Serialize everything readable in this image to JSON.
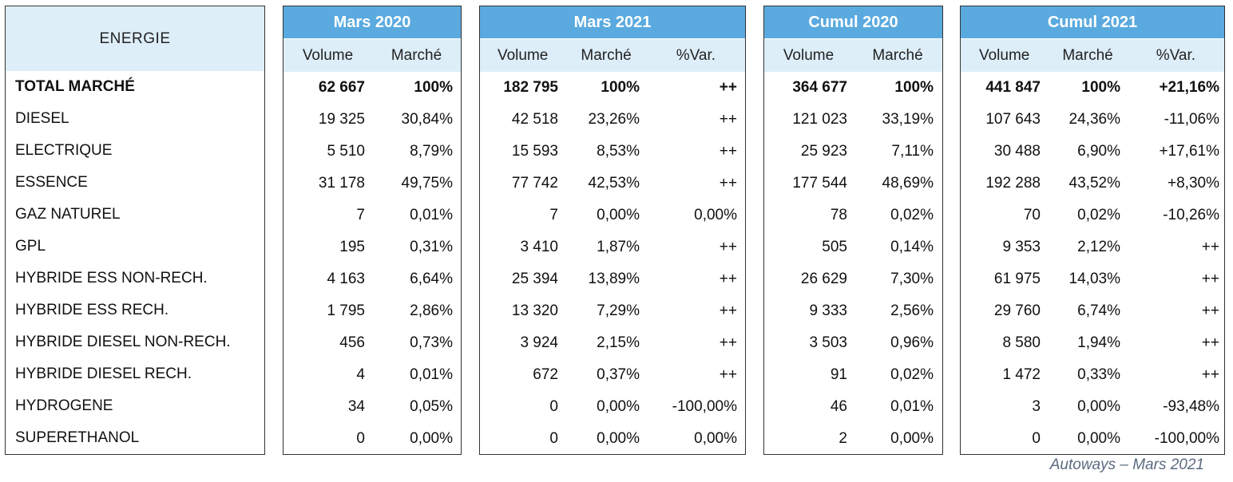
{
  "energy": {
    "header": "ENERGIE",
    "rows": [
      "TOTAL MARCHÉ",
      "DIESEL",
      "ELECTRIQUE",
      "ESSENCE",
      "GAZ NATUREL",
      "GPL",
      "HYBRIDE ESS NON-RECH.",
      "HYBRIDE ESS RECH.",
      "HYBRIDE DIESEL NON-RECH.",
      "HYBRIDE DIESEL RECH.",
      "HYDROGENE",
      "SUPERETHANOL"
    ]
  },
  "mars2020": {
    "title": "Mars 2020",
    "col_volume": "Volume",
    "col_marche": "Marché",
    "rows": [
      [
        "62 667",
        "100%"
      ],
      [
        "19 325",
        "30,84%"
      ],
      [
        "5 510",
        "8,79%"
      ],
      [
        "31 178",
        "49,75%"
      ],
      [
        "7",
        "0,01%"
      ],
      [
        "195",
        "0,31%"
      ],
      [
        "4 163",
        "6,64%"
      ],
      [
        "1 795",
        "2,86%"
      ],
      [
        "456",
        "0,73%"
      ],
      [
        "4",
        "0,01%"
      ],
      [
        "34",
        "0,05%"
      ],
      [
        "0",
        "0,00%"
      ]
    ]
  },
  "mars2021": {
    "title": "Mars 2021",
    "col_volume": "Volume",
    "col_marche": "Marché",
    "col_var": "%Var.",
    "rows": [
      [
        "182 795",
        "100%",
        "++"
      ],
      [
        "42 518",
        "23,26%",
        "++"
      ],
      [
        "15 593",
        "8,53%",
        "++"
      ],
      [
        "77 742",
        "42,53%",
        "++"
      ],
      [
        "7",
        "0,00%",
        "0,00%"
      ],
      [
        "3 410",
        "1,87%",
        "++"
      ],
      [
        "25 394",
        "13,89%",
        "++"
      ],
      [
        "13 320",
        "7,29%",
        "++"
      ],
      [
        "3 924",
        "2,15%",
        "++"
      ],
      [
        "672",
        "0,37%",
        "++"
      ],
      [
        "0",
        "0,00%",
        "-100,00%"
      ],
      [
        "0",
        "0,00%",
        "0,00%"
      ]
    ]
  },
  "cumul2020": {
    "title": "Cumul 2020",
    "col_volume": "Volume",
    "col_marche": "Marché",
    "rows": [
      [
        "364 677",
        "100%"
      ],
      [
        "121 023",
        "33,19%"
      ],
      [
        "25 923",
        "7,11%"
      ],
      [
        "177 544",
        "48,69%"
      ],
      [
        "78",
        "0,02%"
      ],
      [
        "505",
        "0,14%"
      ],
      [
        "26 629",
        "7,30%"
      ],
      [
        "9 333",
        "2,56%"
      ],
      [
        "3 503",
        "0,96%"
      ],
      [
        "91",
        "0,02%"
      ],
      [
        "46",
        "0,01%"
      ],
      [
        "2",
        "0,00%"
      ]
    ]
  },
  "cumul2021": {
    "title": "Cumul 2021",
    "col_volume": "Volume",
    "col_marche": "Marché",
    "col_var": "%Var.",
    "rows": [
      [
        "441 847",
        "100%",
        "+21,16%"
      ],
      [
        "107 643",
        "24,36%",
        "-11,06%"
      ],
      [
        "30 488",
        "6,90%",
        "+17,61%"
      ],
      [
        "192 288",
        "43,52%",
        "+8,30%"
      ],
      [
        "70",
        "0,02%",
        "-10,26%"
      ],
      [
        "9 353",
        "2,12%",
        "++"
      ],
      [
        "61 975",
        "14,03%",
        "++"
      ],
      [
        "29 760",
        "6,74%",
        "++"
      ],
      [
        "8 580",
        "1,94%",
        "++"
      ],
      [
        "1 472",
        "0,33%",
        "++"
      ],
      [
        "3",
        "0,00%",
        "-93,48%"
      ],
      [
        "0",
        "0,00%",
        "-100,00%"
      ]
    ]
  },
  "footer": {
    "source": "Autoways – Mars 2021"
  },
  "colors": {
    "header_blue": "#5aaadf",
    "subheader_light": "#ddeef9",
    "footer_gray": "#5b6a7f"
  }
}
